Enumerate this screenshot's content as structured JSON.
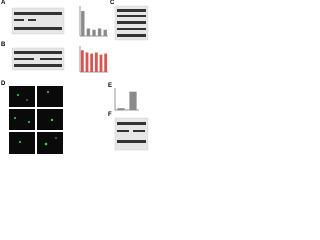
{
  "panels": [
    {
      "label": "A"
    },
    {
      "label": "B"
    },
    {
      "label": "C"
    },
    {
      "label": "D"
    },
    {
      "label": "E"
    },
    {
      "label": "F"
    }
  ],
  "plots": [
    {
      "values": [
        1,
        0.3,
        0.25,
        0.3,
        0.25
      ],
      "color": "#8a8a8a",
      "ylim": [
        0,
        1.2
      ]
    },
    {
      "values": [
        1,
        0.9,
        0.85,
        0.9,
        0.8,
        0.85
      ],
      "color": "#d9534f",
      "ylim": [
        0,
        1.2
      ]
    },
    {
      "values": [
        0.1,
        1
      ],
      "color": "#8a8a8a",
      "ylim": [
        0,
        1.2
      ]
    }
  ]
}
